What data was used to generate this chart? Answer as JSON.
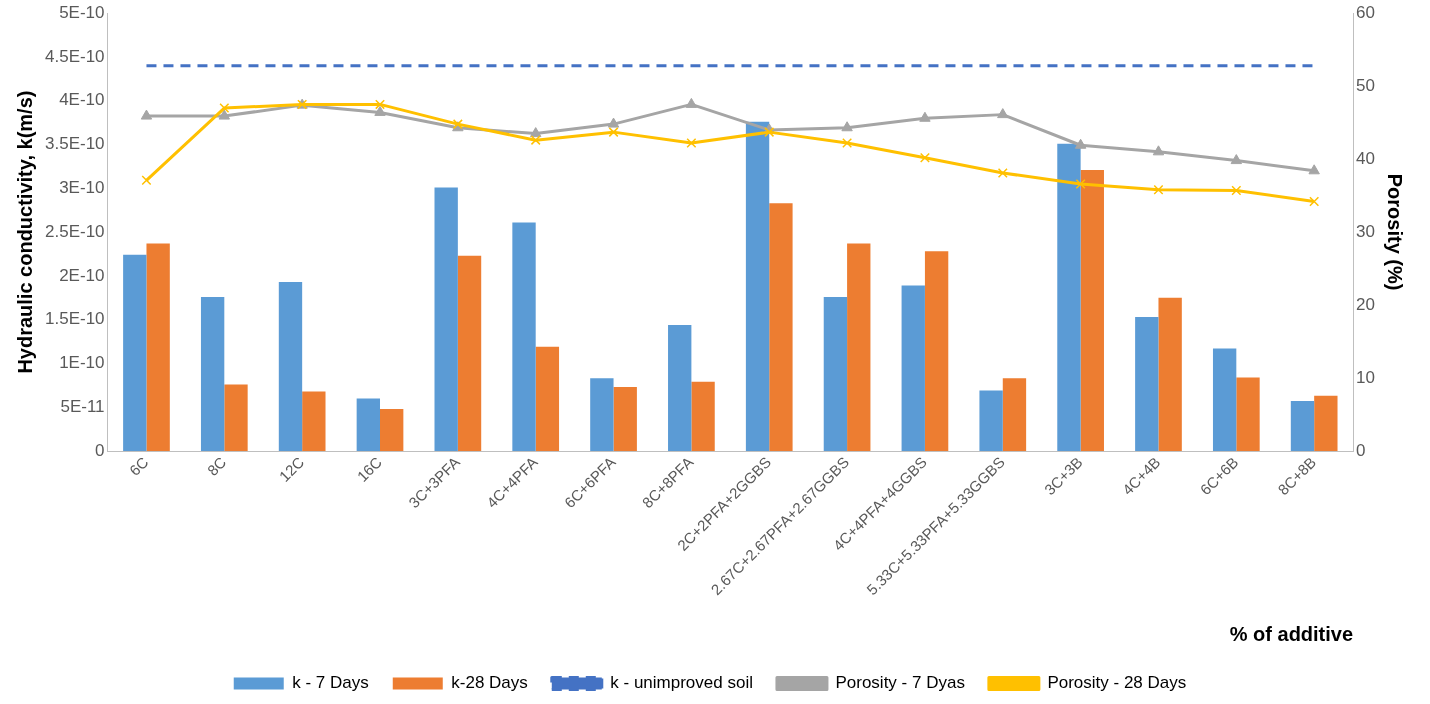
{
  "chart_data": {
    "type": "bar",
    "xlabel": "% of additive",
    "ylabel": "Hydraulic conductivity, k(m/s)",
    "y2label": "Porosity (%)",
    "categories": [
      "6C",
      "8C",
      "12C",
      "16C",
      "3C+3PFA",
      "4C+4PFA",
      "6C+6PFA",
      "8C+8PFA",
      "2C+2PFA+2GGBS",
      "2.67C+2.67PFA+2.67GGBS",
      "4C+4PFA+4GGBS",
      "5.33C+5.33PFA+5.33GGBS",
      "3C+3B",
      "4C+4B",
      "6C+6B",
      "8C+8B"
    ],
    "series": [
      {
        "name": "k - 7 Days",
        "color": "#5b9bd5",
        "values": [
          2.24e-10,
          1.76e-10,
          1.93e-10,
          6e-11,
          3.01e-10,
          2.61e-10,
          8.3e-11,
          1.44e-10,
          3.76e-10,
          1.76e-10,
          1.89e-10,
          6.9e-11,
          3.51e-10,
          1.53e-10,
          1.17e-10,
          5.7e-11
        ]
      },
      {
        "name": "k-28 Days",
        "color": "#ed7d31",
        "values": [
          2.37e-10,
          7.6e-11,
          6.8e-11,
          4.8e-11,
          2.23e-10,
          1.19e-10,
          7.3e-11,
          7.9e-11,
          2.83e-10,
          2.37e-10,
          2.28e-10,
          8.3e-11,
          3.21e-10,
          1.75e-10,
          8.4e-11,
          6.3e-11
        ]
      },
      {
        "name": "k - unimproved soil",
        "type": "line",
        "color": "#4472c4",
        "line_style": "dashed",
        "marker": "none",
        "values": [
          4.4e-10,
          4.4e-10,
          4.4e-10,
          4.4e-10,
          4.4e-10,
          4.4e-10,
          4.4e-10,
          4.4e-10,
          4.4e-10,
          4.4e-10,
          4.4e-10,
          4.4e-10,
          4.4e-10,
          4.4e-10,
          4.4e-10,
          4.4e-10
        ]
      },
      {
        "name": "Porosity - 7 Dyas",
        "type": "line",
        "axis": "y2",
        "color": "#a5a5a5",
        "marker": "triangle",
        "values": [
          45.9,
          45.9,
          47.4,
          46.4,
          44.3,
          43.5,
          44.8,
          47.5,
          44.0,
          44.3,
          45.6,
          46.1,
          41.9,
          41.0,
          39.8,
          38.4
        ]
      },
      {
        "name": "Porosity - 28 Days",
        "type": "line",
        "axis": "y2",
        "color": "#ffc000",
        "marker": "cross",
        "values": [
          37.1,
          47.0,
          47.5,
          47.5,
          44.8,
          42.6,
          43.7,
          42.2,
          43.7,
          42.2,
          40.2,
          38.1,
          36.6,
          35.8,
          35.7,
          34.2
        ]
      }
    ],
    "ylim": [
      0,
      5e-10
    ],
    "yticks": [
      0,
      {
        "value": 5e-11,
        "label": "5E-11"
      },
      {
        "value": 1e-10,
        "label": "1E-10"
      },
      {
        "value": 1.5e-10,
        "label": "1.5E-10"
      },
      {
        "value": 2e-10,
        "label": "2E-10"
      },
      {
        "value": 2.5e-10,
        "label": "2.5E-10"
      },
      {
        "value": 3e-10,
        "label": "3E-10"
      },
      {
        "value": 3.5e-10,
        "label": "3.5E-10"
      },
      {
        "value": 4e-10,
        "label": "4E-10"
      },
      {
        "value": 4.5e-10,
        "label": "4.5E-10"
      },
      {
        "value": 5e-10,
        "label": "5E-10"
      }
    ],
    "y2lim": [
      0,
      60
    ],
    "y2ticks": [
      0,
      10,
      20,
      30,
      40,
      50,
      60
    ],
    "grid": false,
    "legend": "bottom"
  }
}
